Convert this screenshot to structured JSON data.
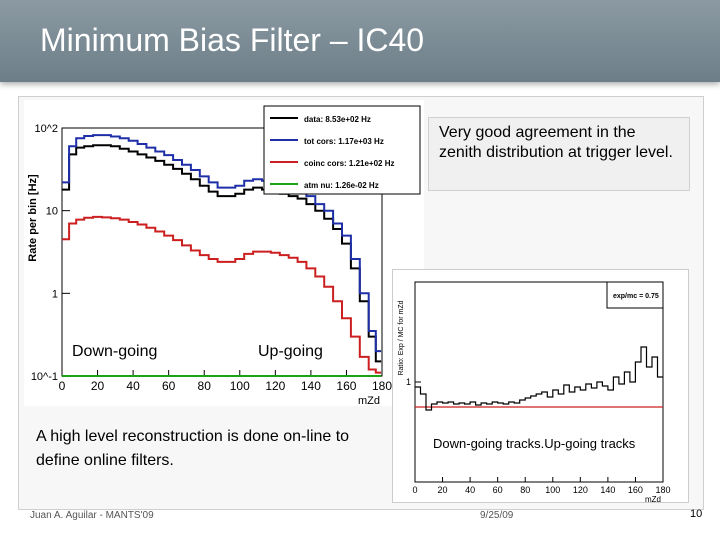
{
  "slide": {
    "title": "Minimum Bias Filter – IC40",
    "callout": "Very good agreement in the zenith distribution at trigger level.",
    "downgoing_label": "Down-going",
    "upgoing_label": "Up-going",
    "paragraph": "A high level reconstruction is done on-line to define online filters.",
    "tracks_label": "Down-going tracks.Up-going tracks",
    "footer_author": "Juan A. Aguilar - MANTS'09",
    "footer_date": "9/25/09",
    "page_number": "10"
  },
  "chart_data": [
    {
      "type": "line",
      "ylabel": "Rate per bin [Hz]",
      "xlabel": "mZd",
      "log_y": true,
      "ylim": [
        0.1,
        100
      ],
      "xlim": [
        0,
        180
      ],
      "x_ticks": [
        "0",
        "20",
        "40",
        "60",
        "80",
        "100",
        "120",
        "140",
        "160",
        "180"
      ],
      "y_ticks": [
        "10^-1",
        "1",
        "10",
        "10^2"
      ],
      "legend_position": "top-right",
      "x": [
        2,
        6,
        10,
        15,
        20,
        25,
        30,
        35,
        40,
        45,
        50,
        55,
        60,
        65,
        70,
        75,
        80,
        85,
        90,
        95,
        100,
        105,
        110,
        115,
        120,
        125,
        130,
        135,
        140,
        145,
        150,
        155,
        160,
        165,
        170,
        175,
        178
      ],
      "series": [
        {
          "name": "data: 8.53e+02 Hz",
          "color": "#000000",
          "values": [
            18,
            48,
            58,
            60,
            62,
            62,
            60,
            56,
            52,
            48,
            44,
            40,
            36,
            32,
            28,
            24,
            20,
            17,
            15,
            15,
            16,
            18,
            19,
            18,
            17,
            16,
            15,
            14,
            12,
            10,
            8,
            6,
            4,
            2,
            0.8,
            0.3,
            0.15
          ]
        },
        {
          "name": "tot cors: 1.17e+03 Hz",
          "color": "#1f2fa8",
          "values": [
            22,
            60,
            75,
            80,
            82,
            82,
            79,
            75,
            70,
            64,
            58,
            52,
            47,
            41,
            36,
            31,
            26,
            22,
            19,
            19,
            20,
            23,
            24,
            23,
            22,
            21,
            19,
            17,
            15,
            12,
            10,
            7,
            5,
            2.6,
            1,
            0.35,
            0.2
          ]
        },
        {
          "name": "coinc cors: 1.21e+02 Hz",
          "color": "#cc1f1f",
          "values": [
            4.5,
            7,
            7.8,
            8.2,
            8.4,
            8.3,
            8.1,
            7.8,
            7.3,
            6.8,
            6.2,
            5.6,
            5.0,
            4.4,
            3.8,
            3.3,
            2.9,
            2.6,
            2.4,
            2.4,
            2.6,
            3.0,
            3.2,
            3.2,
            3.1,
            2.9,
            2.7,
            2.4,
            2.0,
            1.6,
            1.2,
            0.8,
            0.5,
            0.3,
            0.17,
            0.12,
            0.11
          ]
        },
        {
          "name": "atm nu: 1.26e-02 Hz",
          "color": "#19a319",
          "values": [
            0.1,
            0.1,
            0.1,
            0.1,
            0.1,
            0.1,
            0.1,
            0.1,
            0.1,
            0.1,
            0.1,
            0.1,
            0.1,
            0.1,
            0.1,
            0.1,
            0.1,
            0.1,
            0.1,
            0.1,
            0.1,
            0.1,
            0.1,
            0.1,
            0.1,
            0.1,
            0.1,
            0.1,
            0.1,
            0.1,
            0.1,
            0.1,
            0.1,
            0.1,
            0.1,
            0.1,
            0.1
          ]
        }
      ]
    },
    {
      "type": "line",
      "ylabel": "Ratio: Exp / MC for mZd",
      "xlabel": "mZd",
      "xlim": [
        0,
        180
      ],
      "ylim": [
        0,
        2
      ],
      "x_ticks": [
        "0",
        "20",
        "40",
        "60",
        "80",
        "100",
        "120",
        "140",
        "160",
        "180"
      ],
      "y_ticks": [
        "1"
      ],
      "legend": "exp/mc = 0.75",
      "reference_value": 0.75,
      "x": [
        2,
        6,
        10,
        14,
        18,
        22,
        26,
        30,
        34,
        38,
        42,
        46,
        50,
        54,
        58,
        62,
        66,
        70,
        74,
        78,
        82,
        86,
        90,
        94,
        98,
        102,
        106,
        110,
        114,
        118,
        122,
        126,
        130,
        134,
        138,
        142,
        146,
        150,
        154,
        158,
        162,
        166,
        170,
        174,
        178
      ],
      "values": [
        0.95,
        0.88,
        0.72,
        0.78,
        0.8,
        0.79,
        0.8,
        0.78,
        0.79,
        0.78,
        0.8,
        0.77,
        0.79,
        0.78,
        0.8,
        0.79,
        0.78,
        0.8,
        0.79,
        0.82,
        0.84,
        0.86,
        0.88,
        0.9,
        0.85,
        0.92,
        0.88,
        0.97,
        0.9,
        0.95,
        0.92,
        0.98,
        0.94,
        1.0,
        0.96,
        0.92,
        1.05,
        0.98,
        1.1,
        1.0,
        1.2,
        1.35,
        1.15,
        1.25,
        1.05
      ]
    }
  ]
}
